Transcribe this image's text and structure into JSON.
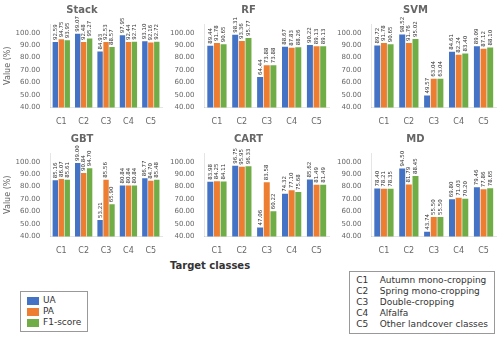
{
  "xlabel": "Target classes",
  "legend": "lower left",
  "annotations": [
    "C1    Autumn mono-cropping",
    "C2    Spring mono-cropping",
    "C3    Double-cropping",
    "C4    Alfalfa",
    "C5    Other landcover classes"
  ],
  "chart_data": [
    {
      "type": "bar",
      "title": "Stack",
      "ylabel": "Value (%)",
      "categories": [
        "C1",
        "C2",
        "C3",
        "C4",
        "C5"
      ],
      "ylim": [
        40,
        107
      ],
      "yticks": [
        {
          "value": 40,
          "label": "40.00"
        },
        {
          "value": 50,
          "label": "50.00"
        },
        {
          "value": 60,
          "label": "60.00"
        },
        {
          "value": 70,
          "label": "70.00"
        },
        {
          "value": 80,
          "label": "80.00"
        },
        {
          "value": 90,
          "label": "90.00"
        },
        {
          "value": 100,
          "label": "100.00"
        }
      ],
      "grid": false,
      "data_labels": true,
      "series": [
        {
          "name": "UA",
          "color": "#4472C4",
          "values": [
            92.59,
            99.07,
            84.93,
            97.95,
            93.1
          ],
          "value_labels": [
            "92.59",
            "99.07",
            "84.93",
            "97.95",
            "93.10"
          ]
        },
        {
          "name": "PA",
          "color": "#ED7D31",
          "values": [
            94.75,
            92.48,
            92.53,
            92.44,
            92.16
          ],
          "value_labels": [
            "94.75",
            "92.48",
            "92.53",
            "92.44",
            "92.16"
          ]
        },
        {
          "name": "F1-score",
          "color": "#70AD47",
          "values": [
            93.95,
            95.27,
            88.57,
            92.71,
            92.72
          ],
          "value_labels": [
            "93.95",
            "95.27",
            "88.57",
            "92.71",
            "92.72"
          ]
        }
      ]
    },
    {
      "type": "bar",
      "title": "RF",
      "categories": [
        "C1",
        "C2",
        "C3",
        "C4",
        "C5"
      ],
      "ylim": [
        40,
        107
      ],
      "yticks": [
        {
          "value": 40,
          "label": "40.00"
        },
        {
          "value": 50,
          "label": "50.00"
        },
        {
          "value": 60,
          "label": "60.00"
        },
        {
          "value": 70,
          "label": "70.00"
        },
        {
          "value": 80,
          "label": "80.00"
        },
        {
          "value": 90,
          "label": "90.00"
        },
        {
          "value": 100,
          "label": "100.00"
        }
      ],
      "grid": false,
      "data_labels": true,
      "series": [
        {
          "name": "UA",
          "color": "#4472C4",
          "values": [
            89.44,
            98.31,
            64.44,
            88.67,
            90.22
          ],
          "value_labels": [
            "89.44",
            "98.31",
            "64.44",
            "88.67",
            "90.22"
          ]
        },
        {
          "name": "PA",
          "color": "#ED7D31",
          "values": [
            91.78,
            93.36,
            73.88,
            87.83,
            89.13
          ],
          "value_labels": [
            "91.78",
            "93.36",
            "73.88",
            "87.83",
            "89.13"
          ]
        },
        {
          "name": "F1-score",
          "color": "#70AD47",
          "values": [
            90.65,
            95.77,
            73.88,
            88.26,
            89.13
          ],
          "value_labels": [
            "90.65",
            "95.77",
            "73.88",
            "88.26",
            "89.13"
          ]
        }
      ]
    },
    {
      "type": "bar",
      "title": "SVM",
      "categories": [
        "C1",
        "C2",
        "C3",
        "C4",
        "C5"
      ],
      "ylim": [
        40,
        107
      ],
      "yticks": [
        {
          "value": 40,
          "label": "40.00"
        },
        {
          "value": 50,
          "label": "50.00"
        },
        {
          "value": 60,
          "label": "60.00"
        },
        {
          "value": 70,
          "label": "70.00"
        },
        {
          "value": 80,
          "label": "80.00"
        },
        {
          "value": 90,
          "label": "90.00"
        },
        {
          "value": 100,
          "label": "100.00"
        }
      ],
      "grid": false,
      "data_labels": true,
      "series": [
        {
          "name": "UA",
          "color": "#4472C4",
          "values": [
            89.72,
            98.52,
            49.57,
            84.61,
            89.09
          ],
          "value_labels": [
            "89.72",
            "98.52",
            "49.57",
            "84.61",
            "89.09"
          ]
        },
        {
          "name": "PA",
          "color": "#ED7D31",
          "values": [
            91.78,
            91.76,
            63.04,
            82.24,
            87.12
          ],
          "value_labels": [
            "91.78",
            "91.76",
            "63.04",
            "82.24",
            "87.12"
          ]
        },
        {
          "name": "F1-score",
          "color": "#70AD47",
          "values": [
            90.65,
            95.02,
            63.04,
            83.4,
            88.1
          ],
          "value_labels": [
            "90.65",
            "95.02",
            "63.04",
            "83.40",
            "88.10"
          ]
        }
      ]
    },
    {
      "type": "bar",
      "title": "GBT",
      "ylabel": "Value (%)",
      "categories": [
        "C1",
        "C2",
        "C3",
        "C4",
        "C5"
      ],
      "ylim": [
        40,
        107
      ],
      "yticks": [
        {
          "value": 40,
          "label": "40.00"
        },
        {
          "value": 50,
          "label": "50.00"
        },
        {
          "value": 60,
          "label": "60.00"
        },
        {
          "value": 70,
          "label": "70.00"
        },
        {
          "value": 80,
          "label": "80.00"
        },
        {
          "value": 90,
          "label": "90.00"
        },
        {
          "value": 100,
          "label": "100.00"
        }
      ],
      "grid": false,
      "data_labels": true,
      "series": [
        {
          "name": "UA",
          "color": "#4472C4",
          "values": [
            85.16,
            99.0,
            53.21,
            80.84,
            86.77
          ],
          "value_labels": [
            "85.16",
            "99.00",
            "53.21",
            "80.84",
            "86.77"
          ]
        },
        {
          "name": "PA",
          "color": "#ED7D31",
          "values": [
            86.07,
            90.84,
            85.56,
            80.84,
            84.7
          ],
          "value_labels": [
            "86.07",
            "90.84",
            "85.56",
            "80.84",
            "84.70"
          ]
        },
        {
          "name": "F1-score",
          "color": "#70AD47",
          "values": [
            85.61,
            94.7,
            65.9,
            80.84,
            85.48
          ],
          "value_labels": [
            "85.61",
            "94.70",
            "65.90",
            "80.84",
            "85.48"
          ]
        }
      ]
    },
    {
      "type": "bar",
      "title": "CART",
      "categories": [
        "C1",
        "C2",
        "C3",
        "C4",
        "C5"
      ],
      "ylim": [
        40,
        107
      ],
      "yticks": [
        {
          "value": 40,
          "label": "40.00"
        },
        {
          "value": 50,
          "label": "50.00"
        },
        {
          "value": 60,
          "label": "60.00"
        },
        {
          "value": 70,
          "label": "70.00"
        },
        {
          "value": 80,
          "label": "80.00"
        },
        {
          "value": 90,
          "label": "90.00"
        },
        {
          "value": 100,
          "label": "100.00"
        }
      ],
      "grid": false,
      "data_labels": true,
      "series": [
        {
          "name": "UA",
          "color": "#4472C4",
          "values": [
            83.98,
            96.75,
            47.06,
            74.32,
            85.62
          ],
          "value_labels": [
            "83.98",
            "96.75",
            "47.06",
            "74.32",
            "85.62"
          ]
        },
        {
          "name": "PA",
          "color": "#ED7D31",
          "values": [
            84.25,
            95.95,
            83.58,
            77.1,
            81.49
          ],
          "value_labels": [
            "84.25",
            "95.95",
            "83.58",
            "77.10",
            "81.49"
          ]
        },
        {
          "name": "F1-score",
          "color": "#70AD47",
          "values": [
            84.11,
            96.33,
            60.22,
            75.68,
            81.49
          ],
          "value_labels": [
            "84.11",
            "96.33",
            "60.22",
            "75.68",
            "81.49"
          ]
        }
      ]
    },
    {
      "type": "bar",
      "title": "MD",
      "categories": [
        "C1",
        "C2",
        "C3",
        "C4",
        "C5"
      ],
      "ylim": [
        40,
        107
      ],
      "yticks": [
        {
          "value": 40,
          "label": "40.00"
        },
        {
          "value": 50,
          "label": "50.00"
        },
        {
          "value": 60,
          "label": "60.00"
        },
        {
          "value": 70,
          "label": "70.00"
        },
        {
          "value": 80,
          "label": "80.00"
        },
        {
          "value": 90,
          "label": "90.00"
        },
        {
          "value": 100,
          "label": "100.00"
        }
      ],
      "grid": false,
      "data_labels": true,
      "series": [
        {
          "name": "UA",
          "color": "#4472C4",
          "values": [
            78.4,
            94.5,
            43.74,
            69.8,
            79.46
          ],
          "value_labels": [
            "78.40",
            "94.50",
            "43.74",
            "69.80",
            "79.46"
          ]
        },
        {
          "name": "PA",
          "color": "#ED7D31",
          "values": [
            78.21,
            81.79,
            55.5,
            71.03,
            77.86
          ],
          "value_labels": [
            "78.21",
            "81.79",
            "55.50",
            "71.03",
            "77.86"
          ]
        },
        {
          "name": "F1-score",
          "color": "#70AD47",
          "values": [
            78.35,
            88.45,
            55.5,
            70.2,
            78.65
          ],
          "value_labels": [
            "78.35",
            "88.45",
            "55.50",
            "70.20",
            "78.65"
          ]
        }
      ]
    }
  ]
}
